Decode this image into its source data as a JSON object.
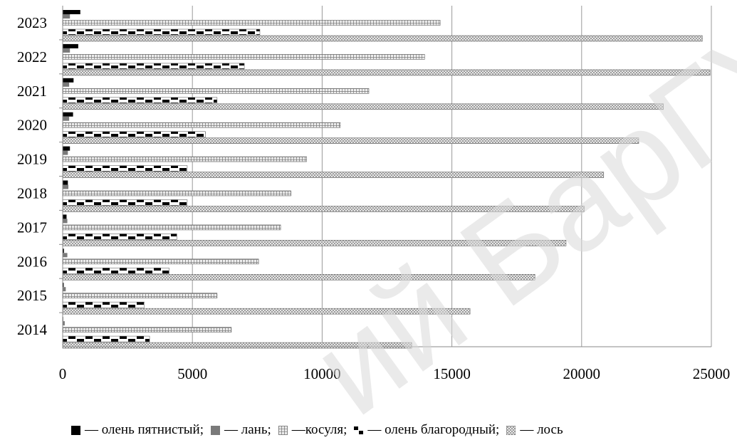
{
  "chart_data": {
    "type": "bar",
    "orientation": "horizontal",
    "categories": [
      "2014",
      "2015",
      "2016",
      "2017",
      "2018",
      "2019",
      "2020",
      "2021",
      "2022",
      "2023"
    ],
    "series": [
      {
        "name": "олень пятнистый",
        "values": [
          20,
          40,
          50,
          150,
          200,
          280,
          400,
          420,
          600,
          680
        ],
        "color": "#000000",
        "pattern": "solid"
      },
      {
        "name": "лань",
        "values": [
          80,
          120,
          180,
          180,
          220,
          200,
          250,
          250,
          280,
          280
        ],
        "color": "#7a7a7a",
        "pattern": "solid"
      },
      {
        "name": "косуля",
        "values": [
          6500,
          5950,
          7550,
          8400,
          8800,
          9400,
          10700,
          11800,
          13950,
          14550
        ],
        "color": "#b0b0b0",
        "pattern": "grid"
      },
      {
        "name": "олень благородный",
        "values": [
          3350,
          3150,
          4100,
          4400,
          4800,
          4800,
          5500,
          5950,
          7000,
          7600
        ],
        "color": "#000000",
        "pattern": "dashes"
      },
      {
        "name": "лось",
        "values": [
          13450,
          15700,
          18200,
          19400,
          20100,
          20850,
          22200,
          23150,
          24950,
          24650
        ],
        "color": "#9a9a9a",
        "pattern": "crosshatch"
      }
    ],
    "xlim": [
      0,
      25000
    ],
    "xticks": [
      "0",
      "5000",
      "10000",
      "15000",
      "20000",
      "25000"
    ],
    "grid": true,
    "legend_position": "bottom"
  },
  "legend": {
    "items": [
      {
        "text": "— олень пятнистый;"
      },
      {
        "text": "— лань;"
      },
      {
        "text": "—косуля;"
      },
      {
        "text": "— олень благородный;"
      },
      {
        "text": "— лось"
      }
    ]
  },
  "watermark": {
    "text": "ий БарГУ",
    "color": "#d8d8d8"
  }
}
